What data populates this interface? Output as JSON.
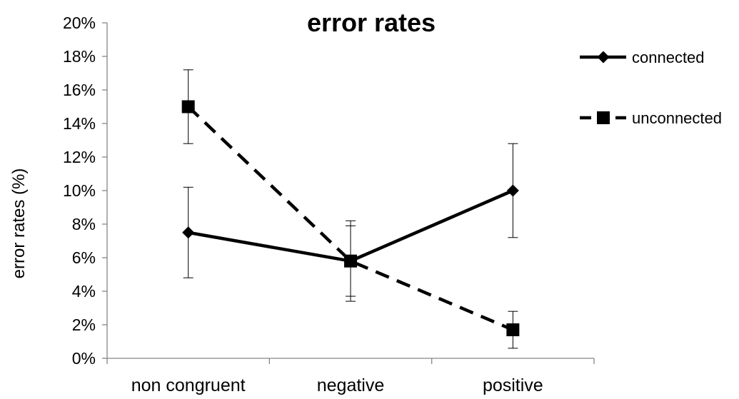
{
  "chart_data": {
    "type": "line",
    "title": "error rates",
    "xlabel": "",
    "ylabel": "error rates (%)",
    "categories": [
      "non congruent",
      "negative",
      "positive"
    ],
    "ylim": [
      0,
      20
    ],
    "yticks": [
      0,
      2,
      4,
      6,
      8,
      10,
      12,
      14,
      16,
      18,
      20
    ],
    "ytick_labels": [
      "0%",
      "2%",
      "4%",
      "6%",
      "8%",
      "10%",
      "12%",
      "14%",
      "16%",
      "18%",
      "20%"
    ],
    "grid": false,
    "legend_position": "right",
    "series": [
      {
        "name": "connected",
        "values": [
          7.5,
          5.8,
          10.0
        ],
        "error": [
          2.7,
          2.1,
          2.8
        ],
        "marker": "diamond",
        "line_style": "solid",
        "color": "#000000"
      },
      {
        "name": "unconnected",
        "values": [
          15.0,
          5.8,
          1.7
        ],
        "error": [
          2.2,
          2.4,
          1.1
        ],
        "marker": "square",
        "line_style": "dashed",
        "color": "#000000"
      }
    ]
  }
}
